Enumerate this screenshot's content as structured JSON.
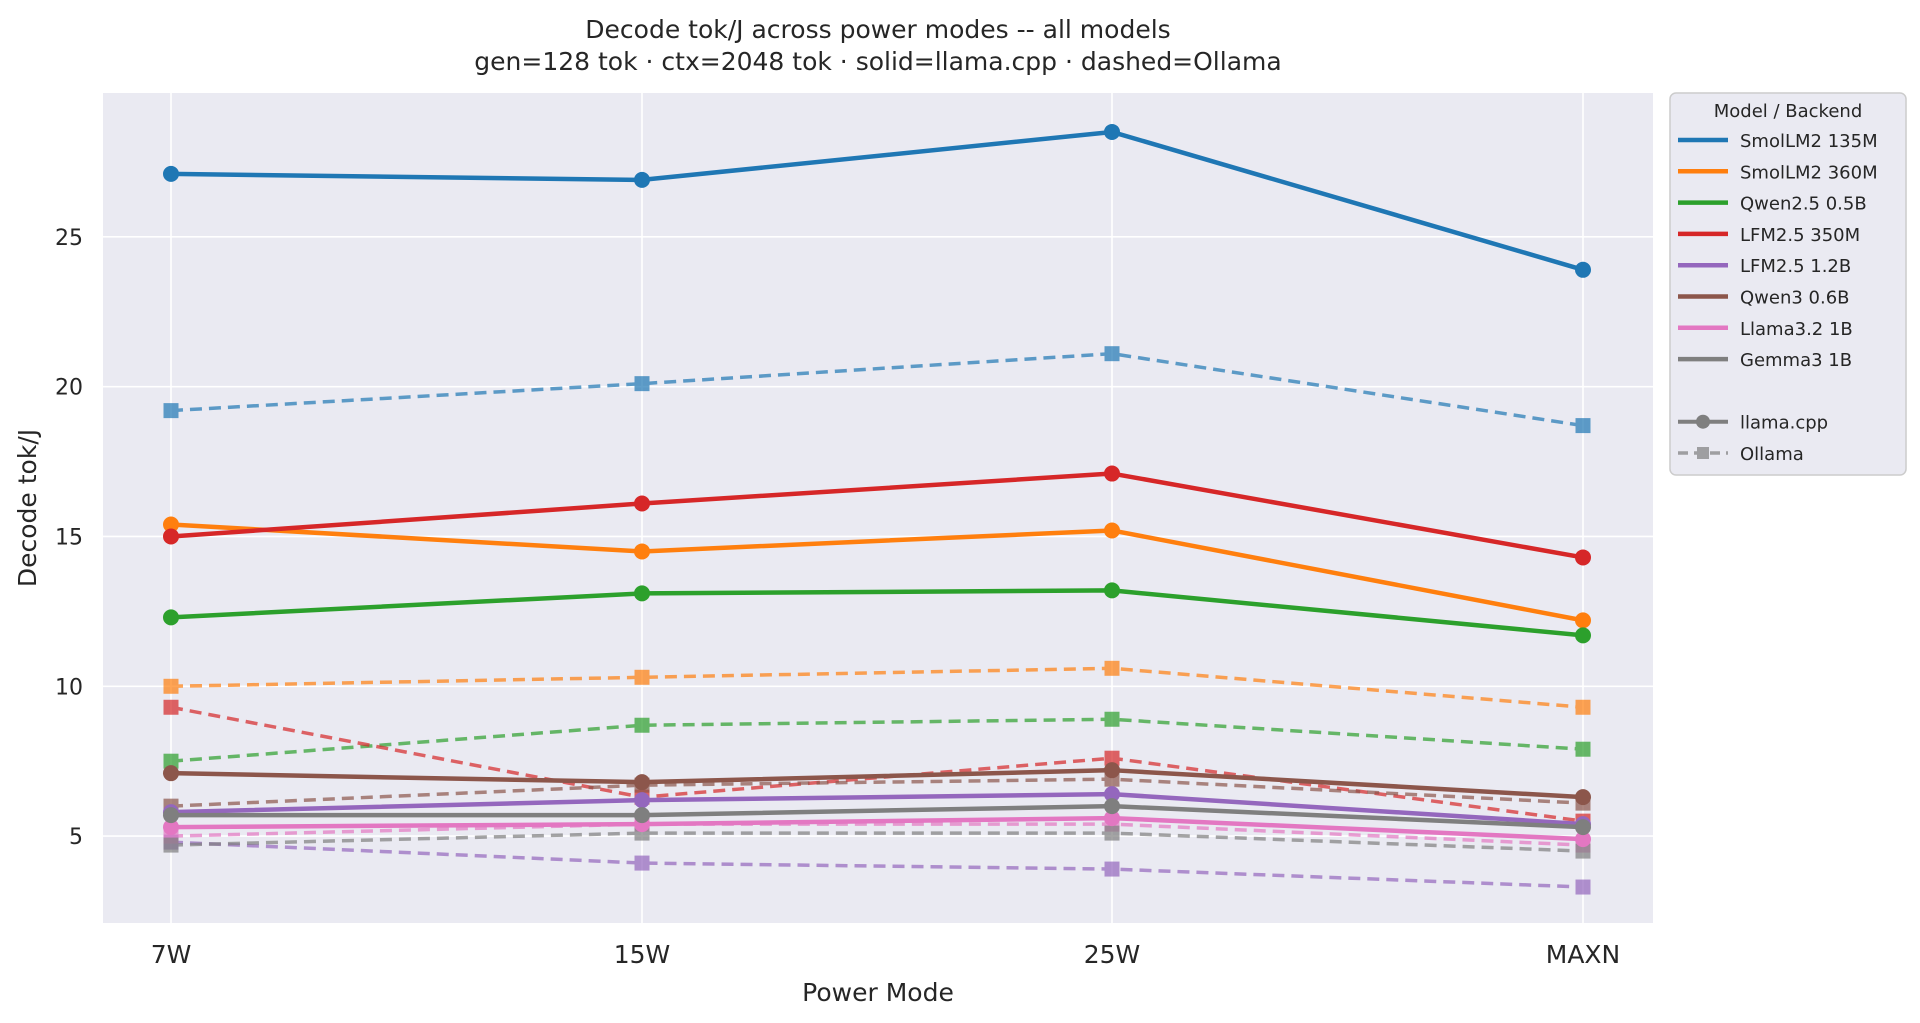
{
  "chart_data": {
    "type": "line",
    "title": "Decode tok/J across power modes -- all models",
    "subtitle": "gen=128 tok · ctx=2048 tok · solid=llama.cpp · dashed=Ollama",
    "xlabel": "Power Mode",
    "ylabel": "Decode tok/J",
    "categories": [
      "7W",
      "15W",
      "25W",
      "MAXN"
    ],
    "ylim": [
      2.1,
      29.8
    ],
    "yticks": [
      5,
      10,
      15,
      20,
      25
    ],
    "grid": true,
    "legend_position": "outside-right",
    "legend_title": "Model  /  Backend",
    "backends": [
      {
        "name": "llama.cpp",
        "style": "solid",
        "marker": "circle"
      },
      {
        "name": "Ollama",
        "style": "dashed",
        "marker": "square"
      }
    ],
    "series": [
      {
        "name": "SmolLM2 135M",
        "color": "#1f77b4",
        "llama_cpp": [
          27.1,
          26.9,
          28.5,
          23.9
        ],
        "ollama": [
          19.2,
          20.1,
          21.1,
          18.7
        ]
      },
      {
        "name": "SmolLM2 360M",
        "color": "#ff7f0e",
        "llama_cpp": [
          15.4,
          14.5,
          15.2,
          12.2
        ],
        "ollama": [
          10.0,
          10.3,
          10.6,
          9.3
        ]
      },
      {
        "name": "Qwen2.5 0.5B",
        "color": "#2ca02c",
        "llama_cpp": [
          12.3,
          13.1,
          13.2,
          11.7
        ],
        "ollama": [
          7.5,
          8.7,
          8.9,
          7.9
        ]
      },
      {
        "name": "LFM2.5 350M",
        "color": "#d62728",
        "llama_cpp": [
          15.0,
          16.1,
          17.1,
          14.3
        ],
        "ollama": [
          9.3,
          6.3,
          7.6,
          5.5
        ]
      },
      {
        "name": "LFM2.5 1.2B",
        "color": "#9467bd",
        "llama_cpp": [
          5.8,
          6.2,
          6.4,
          5.4
        ],
        "ollama": [
          4.8,
          4.1,
          3.9,
          3.3
        ]
      },
      {
        "name": "Qwen3 0.6B",
        "color": "#8c564b",
        "llama_cpp": [
          7.1,
          6.8,
          7.2,
          6.3
        ],
        "ollama": [
          6.0,
          6.7,
          6.9,
          6.1
        ]
      },
      {
        "name": "Llama3.2 1B",
        "color": "#e377c2",
        "llama_cpp": [
          5.3,
          5.4,
          5.6,
          4.9
        ],
        "ollama": [
          5.0,
          5.4,
          5.4,
          4.7
        ]
      },
      {
        "name": "Gemma3 1B",
        "color": "#7f7f7f",
        "llama_cpp": [
          5.7,
          5.7,
          6.0,
          5.3
        ],
        "ollama": [
          4.7,
          5.1,
          5.1,
          4.5
        ]
      }
    ]
  }
}
